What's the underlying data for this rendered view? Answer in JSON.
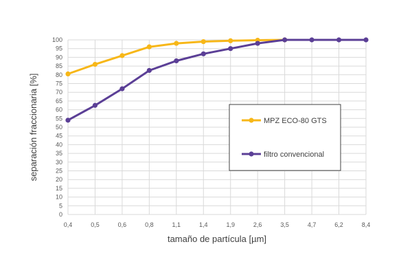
{
  "chart_data": {
    "type": "line",
    "title": "",
    "xlabel": "tamaño de partícula [µm]",
    "ylabel": "separación fraccionaria [%]",
    "categories": [
      "0,4",
      "0,5",
      "0,6",
      "0,8",
      "1,1",
      "1,4",
      "1,9",
      "2,6",
      "3,5",
      "4,7",
      "6,2",
      "8,4"
    ],
    "ylim": [
      0,
      100
    ],
    "y_ticks": [
      0,
      5,
      10,
      15,
      20,
      25,
      30,
      35,
      40,
      45,
      50,
      55,
      60,
      65,
      70,
      75,
      80,
      85,
      90,
      95,
      100
    ],
    "grid": true,
    "legend_position": "center-right",
    "series": [
      {
        "name": "MPZ ECO-80 GTS",
        "color": "#F7B718",
        "values": [
          80.5,
          86,
          91,
          96,
          98,
          99,
          99.5,
          99.8,
          100,
          null,
          null,
          null
        ]
      },
      {
        "name": "filtro convencional",
        "color": "#5B3F96",
        "values": [
          54,
          62.5,
          72,
          82.5,
          88,
          92,
          95,
          98,
          100,
          100,
          100,
          100
        ]
      }
    ]
  }
}
